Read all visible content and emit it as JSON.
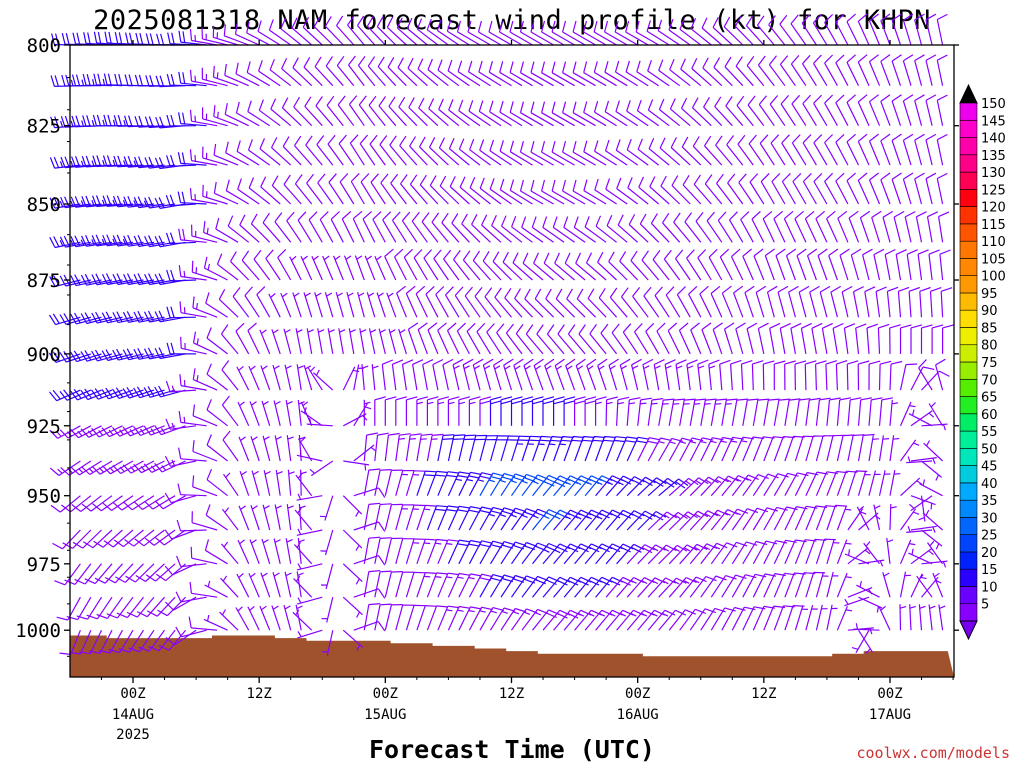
{
  "chart_data": {
    "type": "wind-barb-profile",
    "title": "2025081318 NAM forecast wind profile (kt) for KHPN",
    "xlabel": "Forecast Time (UTC)",
    "ylabel": "",
    "y_axis": {
      "unit": "hPa",
      "ylim": [
        1018,
        800
      ],
      "ticks": [
        800,
        825,
        850,
        875,
        900,
        925,
        950,
        975,
        1000
      ]
    },
    "x_axis": {
      "ticks": [
        {
          "hours": 6,
          "label": "00Z",
          "date": "14AUG",
          "year": "2025"
        },
        {
          "hours": 18,
          "label": "12Z",
          "date": "",
          "year": ""
        },
        {
          "hours": 30,
          "label": "00Z",
          "date": "15AUG",
          "year": ""
        },
        {
          "hours": 42,
          "label": "12Z",
          "date": "",
          "year": ""
        },
        {
          "hours": 54,
          "label": "00Z",
          "date": "16AUG",
          "year": ""
        },
        {
          "hours": 66,
          "label": "12Z",
          "date": "",
          "year": ""
        },
        {
          "hours": 78,
          "label": "00Z",
          "date": "17AUG",
          "year": ""
        }
      ]
    },
    "colorbar": {
      "levels": [
        5,
        10,
        15,
        20,
        25,
        30,
        35,
        40,
        45,
        50,
        55,
        60,
        65,
        70,
        75,
        80,
        85,
        90,
        95,
        100,
        105,
        110,
        115,
        120,
        125,
        130,
        135,
        140,
        145,
        150
      ],
      "colors": [
        "#8800ff",
        "#6a00ff",
        "#2a00ff",
        "#0022ff",
        "#0044ff",
        "#0066ff",
        "#0088ff",
        "#00aaff",
        "#00ccdd",
        "#00e6bb",
        "#00ee99",
        "#00ee66",
        "#22ee22",
        "#55ee00",
        "#99ee00",
        "#ccee00",
        "#eeee00",
        "#ffdd00",
        "#ffbb00",
        "#ff9900",
        "#ff8800",
        "#ff7700",
        "#ff5500",
        "#ff3300",
        "#ff0011",
        "#ff0055",
        "#ff0088",
        "#ff00aa",
        "#ff00cc",
        "#ee00ee"
      ],
      "under_color": "#7700ee",
      "over_color": "#000000"
    },
    "barbs": {
      "x_start_hours": 0,
      "x_step_hours": 1,
      "levels_hpa": [
        800,
        812.5,
        825,
        837.5,
        850,
        862.5,
        875,
        887.5,
        900,
        912.5,
        925,
        937.5,
        950,
        962.5,
        975,
        987.5,
        1000
      ],
      "speed_color_rule": "purple below 20 kt, blue for 20-30 kt",
      "sampled_rows": [
        {
          "hpa": 800,
          "dir_deg": [
            270,
            275,
            270,
            290,
            310,
            320,
            310,
            300,
            300,
            300,
            300,
            310,
            320,
            330,
            340,
            350
          ],
          "speed_kt": [
            22,
            22,
            21,
            12,
            8,
            8,
            8,
            8,
            8,
            10,
            10,
            10,
            12,
            12,
            10,
            8
          ]
        },
        {
          "hpa": 850,
          "dir_deg": [
            260,
            265,
            260,
            300,
            320,
            330,
            320,
            310,
            300,
            300,
            310,
            320,
            330,
            330,
            340,
            350
          ],
          "speed_kt": [
            24,
            24,
            22,
            10,
            8,
            8,
            8,
            10,
            10,
            12,
            12,
            12,
            12,
            10,
            10,
            8
          ]
        },
        {
          "hpa": 900,
          "dir_deg": [
            250,
            255,
            260,
            330,
            350,
            350,
            340,
            330,
            320,
            320,
            330,
            340,
            350,
            350,
            360,
            360
          ],
          "speed_kt": [
            20,
            20,
            20,
            8,
            6,
            6,
            8,
            10,
            10,
            10,
            12,
            12,
            10,
            10,
            8,
            8
          ]
        },
        {
          "hpa": 950,
          "dir_deg": [
            230,
            235,
            240,
            340,
            360,
            10,
            20,
            30,
            40,
            40,
            50,
            40,
            30,
            20,
            10,
            360
          ],
          "speed_kt": [
            12,
            12,
            12,
            6,
            6,
            8,
            20,
            26,
            28,
            24,
            18,
            14,
            10,
            8,
            6,
            6
          ]
        },
        {
          "hpa": 1000,
          "dir_deg": [
            200,
            210,
            220,
            330,
            350,
            10,
            20,
            30,
            40,
            40,
            40,
            30,
            20,
            10,
            360,
            350
          ],
          "speed_kt": [
            10,
            10,
            10,
            6,
            6,
            8,
            12,
            16,
            18,
            16,
            12,
            10,
            8,
            6,
            6,
            6
          ]
        }
      ]
    },
    "terrain": {
      "color": "#a0522d",
      "surface_pressure_hpa": [
        1002,
        1002,
        1002,
        1002,
        1003,
        1003,
        1003,
        1003,
        1003,
        1003,
        1003,
        1003,
        1003,
        1003,
        1002,
        1002,
        1002,
        1002,
        1002,
        1002,
        1003,
        1003,
        1003,
        1004,
        1004,
        1004,
        1004,
        1004,
        1004,
        1004,
        1004,
        1005,
        1005,
        1005,
        1005,
        1006,
        1006,
        1006,
        1006,
        1007,
        1007,
        1007,
        1008,
        1008,
        1008,
        1009,
        1009,
        1009,
        1009,
        1009,
        1009,
        1009,
        1009,
        1009,
        1009,
        1010,
        1010,
        1010,
        1010,
        1010,
        1010,
        1010,
        1010,
        1010,
        1010,
        1010,
        1010,
        1010,
        1010,
        1010,
        1010,
        1010,
        1010,
        1009,
        1009,
        1009,
        1008,
        1008,
        1008,
        1008,
        1008,
        1008,
        1008,
        1008
      ]
    }
  },
  "credit": "coolwx.com/models"
}
